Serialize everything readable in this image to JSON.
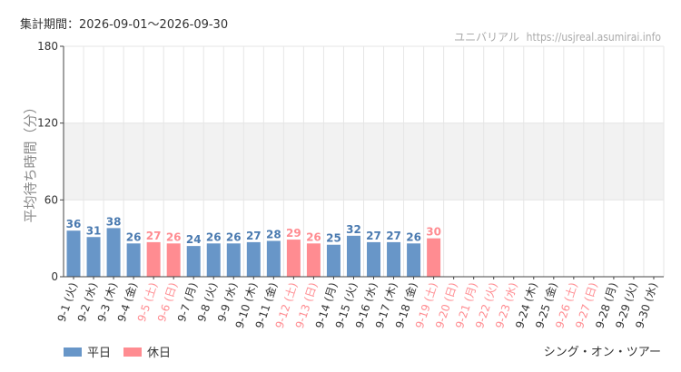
{
  "header": {
    "period_label": "集計期間：2026-09-01〜2026-09-30",
    "site_name": "ユニバリアル",
    "site_url": "https://usjreal.asumirai.info"
  },
  "footer": {
    "attraction_name": "シング・オン・ツアー"
  },
  "colors": {
    "weekday": "#6896c8",
    "holiday": "#ff8c91",
    "holiday_label": "#ff8c91",
    "weekday_label": "#333333",
    "value_label": "#4a7ab0",
    "band": "#f2f2f2",
    "grid": "#e6e6e6"
  },
  "chart_data": {
    "type": "bar",
    "ylabel": "平均待ち時間（分）",
    "ylim": [
      0,
      180
    ],
    "yticks": [
      0,
      60,
      120,
      180
    ],
    "grid": true,
    "legend": {
      "position": "bottom-left",
      "entries": [
        {
          "key": "weekday",
          "label": "平日"
        },
        {
          "key": "holiday",
          "label": "休日"
        }
      ]
    },
    "categories": [
      "9-1 (火)",
      "9-2 (水)",
      "9-3 (木)",
      "9-4 (金)",
      "9-5 (土)",
      "9-6 (日)",
      "9-7 (月)",
      "9-8 (火)",
      "9-9 (水)",
      "9-10 (木)",
      "9-11 (金)",
      "9-12 (土)",
      "9-13 (日)",
      "9-14 (月)",
      "9-15 (火)",
      "9-16 (水)",
      "9-17 (木)",
      "9-18 (金)",
      "9-19 (土)",
      "9-20 (日)",
      "9-21 (月)",
      "9-22 (火)",
      "9-23 (水)",
      "9-24 (木)",
      "9-25 (金)",
      "9-26 (土)",
      "9-27 (日)",
      "9-28 (月)",
      "9-29 (火)",
      "9-30 (水)"
    ],
    "holiday": [
      false,
      false,
      false,
      false,
      true,
      true,
      false,
      false,
      false,
      false,
      false,
      true,
      true,
      false,
      false,
      false,
      false,
      false,
      true,
      true,
      true,
      true,
      true,
      false,
      false,
      true,
      true,
      false,
      false,
      false
    ],
    "values": [
      36,
      31,
      38,
      26,
      27,
      26,
      24,
      26,
      26,
      27,
      28,
      29,
      26,
      25,
      32,
      27,
      27,
      26,
      30,
      null,
      null,
      null,
      null,
      null,
      null,
      null,
      null,
      null,
      null,
      null
    ]
  }
}
